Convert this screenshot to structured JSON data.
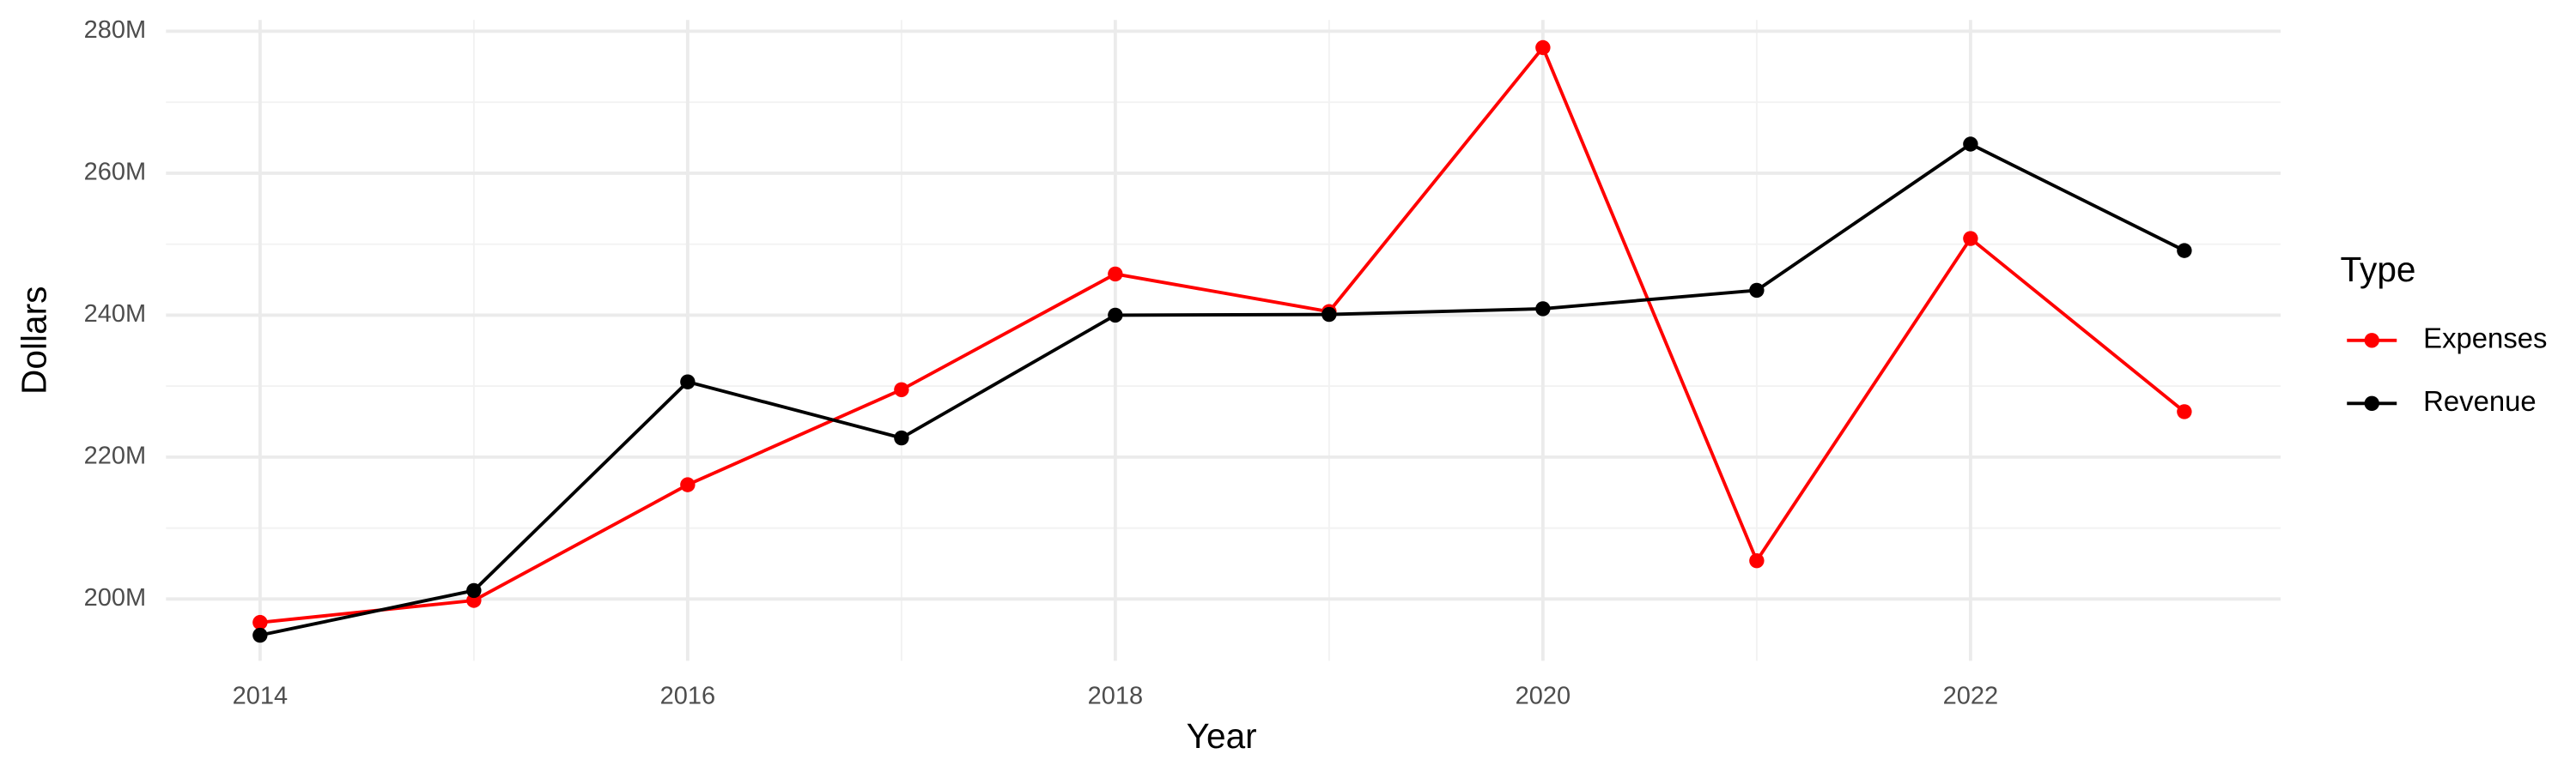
{
  "chart_data": {
    "type": "line",
    "x_label": "Year",
    "y_label": "Dollars",
    "legend_title": "Type",
    "legend_position": "right",
    "x": [
      2014,
      2015,
      2016,
      2017,
      2018,
      2019,
      2020,
      2021,
      2022,
      2023
    ],
    "series": [
      {
        "name": "Expenses",
        "color": "#ff0000",
        "values": [
          196700000,
          199800000,
          216100000,
          229500000,
          245800000,
          240500000,
          277700000,
          205400000,
          250800000,
          226400000
        ]
      },
      {
        "name": "Revenue",
        "color": "#000000",
        "values": [
          194900000,
          201200000,
          230600000,
          222700000,
          240000000,
          240100000,
          240900000,
          243500000,
          264100000,
          249100000
        ]
      }
    ],
    "xlim": [
      2013.56,
      2023.45
    ],
    "xticks": [
      2014,
      2016,
      2018,
      2020,
      2022
    ],
    "ylim": [
      191300000,
      281600000
    ],
    "yticks": [
      {
        "value": 200000000,
        "label": "200M"
      },
      {
        "value": 220000000,
        "label": "220M"
      },
      {
        "value": 240000000,
        "label": "240M"
      },
      {
        "value": 260000000,
        "label": "260M"
      },
      {
        "value": 280000000,
        "label": "280M"
      }
    ],
    "grid": true,
    "minor_grid": true
  }
}
